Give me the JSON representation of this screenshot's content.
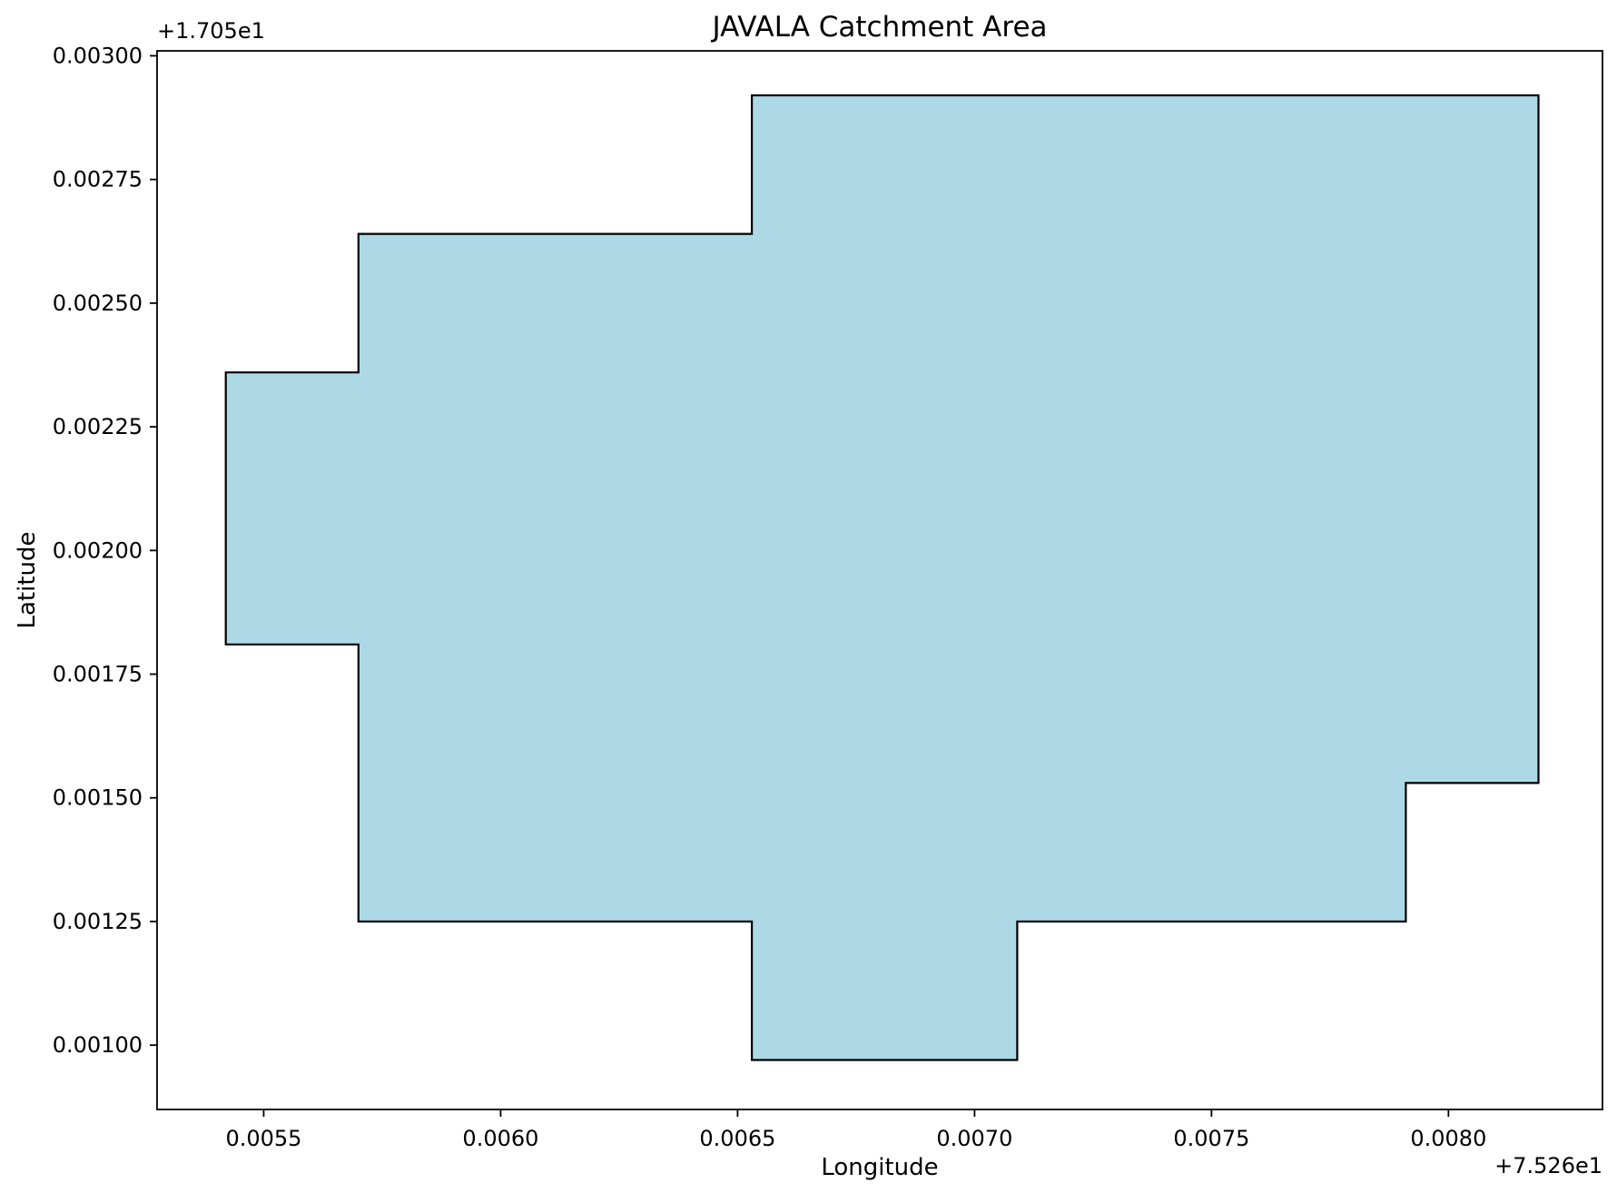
{
  "chart_data": {
    "type": "area",
    "title": "JAVALA Catchment Area",
    "xlabel": "Longitude",
    "ylabel": "Latitude",
    "x_offset_label": "+7.526e1",
    "y_offset_label": "+1.705e1",
    "xlim": [
      0.005275,
      0.008325
    ],
    "ylim": [
      0.00087,
      0.00301
    ],
    "x_ticks": [
      0.0055,
      0.006,
      0.0065,
      0.007,
      0.0075,
      0.008
    ],
    "x_tick_labels": [
      "0.0055",
      "0.0060",
      "0.0065",
      "0.0070",
      "0.0075",
      "0.0080"
    ],
    "y_ticks": [
      0.001,
      0.00125,
      0.0015,
      0.00175,
      0.002,
      0.00225,
      0.0025,
      0.00275,
      0.003
    ],
    "y_tick_labels": [
      "0.00100",
      "0.00125",
      "0.00150",
      "0.00175",
      "0.00200",
      "0.00225",
      "0.00250",
      "0.00275",
      "0.00300"
    ],
    "grid": false,
    "fill_color": "#add8e6",
    "edge_color": "#000000",
    "polygon": {
      "x": [
        0.00653,
        0.00819,
        0.00819,
        0.00791,
        0.00791,
        0.00709,
        0.00709,
        0.00653,
        0.00653,
        0.0057,
        0.0057,
        0.00542,
        0.00542,
        0.0057,
        0.0057,
        0.00653
      ],
      "y": [
        0.00292,
        0.00292,
        0.00153,
        0.00153,
        0.00125,
        0.00125,
        0.00097,
        0.00097,
        0.00125,
        0.00125,
        0.00181,
        0.00181,
        0.00236,
        0.00236,
        0.00264,
        0.00264
      ]
    }
  }
}
